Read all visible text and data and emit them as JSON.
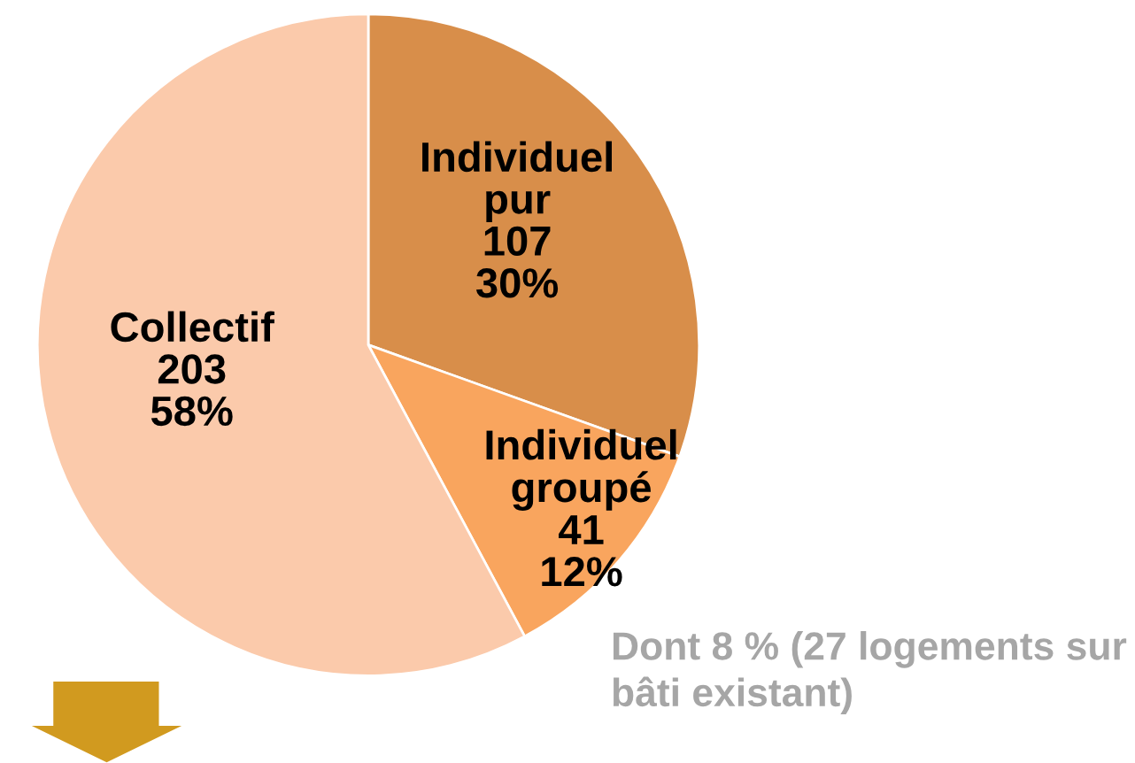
{
  "chart_data": {
    "type": "pie",
    "categories": [
      "Individuel pur",
      "Individuel groupé",
      "Collectif"
    ],
    "values": [
      107,
      41,
      203
    ],
    "colors": [
      "#d88e4a",
      "#f9a55e",
      "#fbcaab"
    ],
    "value_labels": [
      "107\n30%",
      "41\n12%",
      "203\n58%"
    ],
    "annotations": [
      "Dont 8 % (27 logements sur bâti existant)"
    ]
  }
}
